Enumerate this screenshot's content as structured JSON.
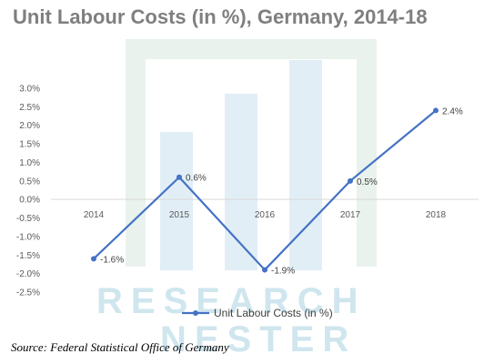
{
  "source": "Source: Federal Statistical Office of Germany",
  "watermark": {
    "line1": "RESEARCH",
    "line2": "NESTER"
  },
  "chart_data": {
    "type": "line",
    "title": "Unit Labour Costs (in %), Germany, 2014-18",
    "xlabel": "",
    "ylabel": "",
    "categories": [
      "2014",
      "2015",
      "2016",
      "2017",
      "2018"
    ],
    "ylim": [
      -2.5,
      3.0
    ],
    "yticks": [
      "3.0%",
      "2.5%",
      "2.0%",
      "1.5%",
      "1.0%",
      "0.5%",
      "0.0%",
      "-0.5%",
      "-1.0%",
      "-1.5%",
      "-2.0%",
      "-2.5%"
    ],
    "ytick_values": [
      3.0,
      2.5,
      2.0,
      1.5,
      1.0,
      0.5,
      0.0,
      -0.5,
      -1.0,
      -1.5,
      -2.0,
      -2.5
    ],
    "series": [
      {
        "name": "Unit Labour Costs (in %)",
        "values": [
          -1.6,
          0.6,
          -1.9,
          0.5,
          2.4
        ],
        "labels": [
          "-1.6%",
          "0.6%",
          "-1.9%",
          "0.5%",
          "2.4%"
        ],
        "color": "#4472c4"
      }
    ],
    "grid": false,
    "legend": "bottom"
  }
}
